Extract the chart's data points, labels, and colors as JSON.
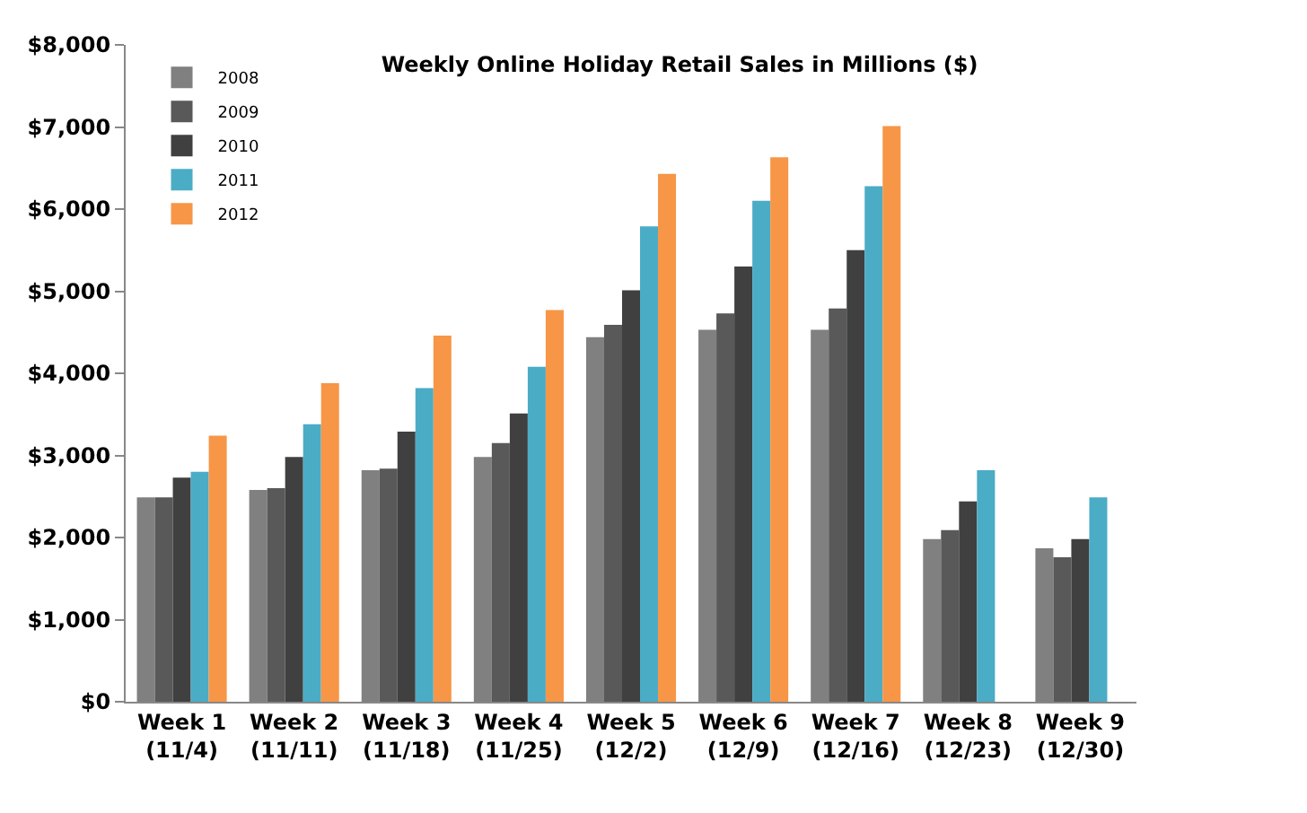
{
  "chart_data": {
    "type": "bar",
    "title": "Weekly Online Holiday Retail Sales in Millions ($)",
    "categories": [
      "Week 1\n(11/4)",
      "Week 2\n(11/11)",
      "Week 3\n(11/18)",
      "Week 4\n(11/25)",
      "Week 5\n(12/2)",
      "Week 6\n(12/9)",
      "Week 7\n(12/16)",
      "Week 8\n(12/23)",
      "Week 9\n(12/30)"
    ],
    "series": [
      {
        "name": "2008",
        "color": "#808080",
        "values": [
          2490,
          2580,
          2820,
          2980,
          4440,
          4530,
          4530,
          1980,
          1870
        ]
      },
      {
        "name": "2009",
        "color": "#595959",
        "values": [
          2490,
          2600,
          2840,
          3150,
          4590,
          4730,
          4790,
          2090,
          1760
        ]
      },
      {
        "name": "2010",
        "color": "#404040",
        "values": [
          2730,
          2980,
          3290,
          3510,
          5010,
          5300,
          5500,
          2440,
          1980
        ]
      },
      {
        "name": "2011",
        "color": "#4bacc6",
        "values": [
          2800,
          3380,
          3820,
          4080,
          5790,
          6100,
          6280,
          2820,
          2490
        ]
      },
      {
        "name": "2012",
        "color": "#f79646",
        "values": [
          3240,
          3880,
          4460,
          4770,
          6430,
          6630,
          7010,
          null,
          null
        ]
      }
    ],
    "ylim": [
      0,
      8000
    ],
    "yticks": [
      {
        "value": 0,
        "label": "$0"
      },
      {
        "value": 1000,
        "label": "$1,000"
      },
      {
        "value": 2000,
        "label": "$2,000"
      },
      {
        "value": 3000,
        "label": "$3,000"
      },
      {
        "value": 4000,
        "label": "$4,000"
      },
      {
        "value": 5000,
        "label": "$5,000"
      },
      {
        "value": 6000,
        "label": "$6,000"
      },
      {
        "value": 7000,
        "label": "$7,000"
      },
      {
        "value": 8000,
        "label": "$8,000"
      }
    ],
    "legend": "top left"
  }
}
